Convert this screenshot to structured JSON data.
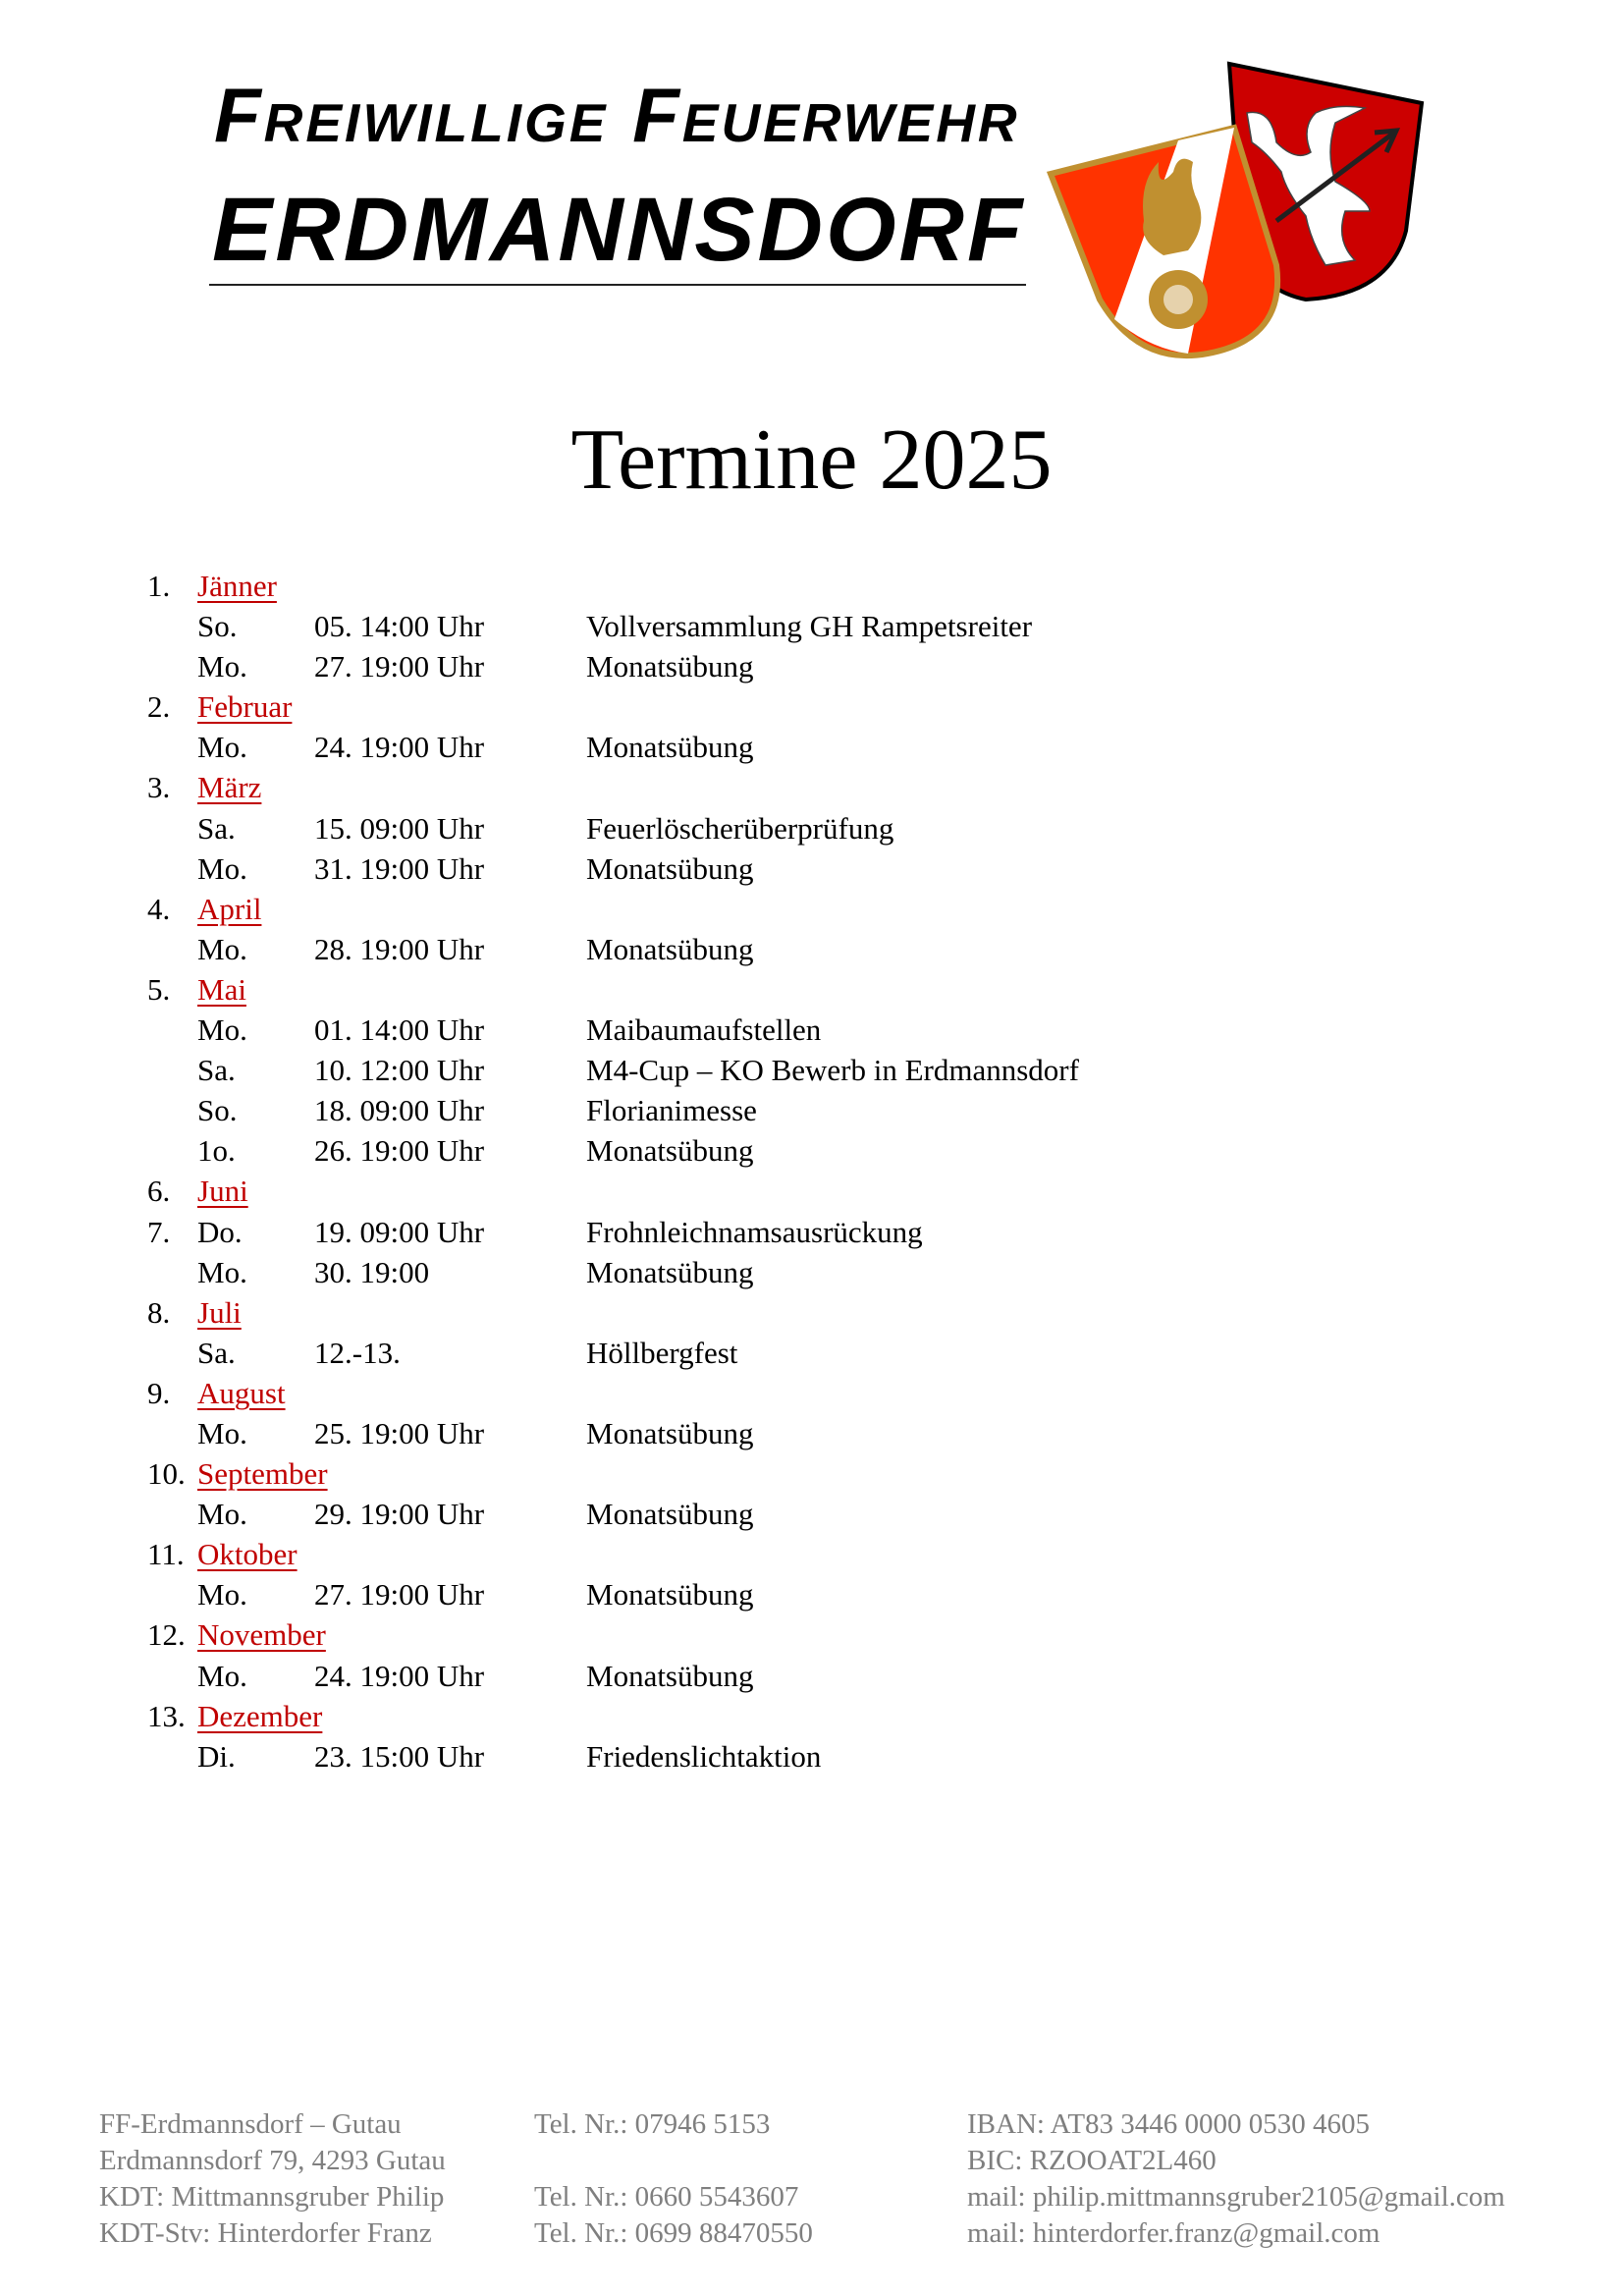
{
  "header": {
    "line1": "Freiwillige Feuerwehr",
    "line2": "ERDMANNSDORF",
    "logo_icons": [
      "fire-brigade-crest-icon",
      "municipal-coat-of-arms-deer-icon"
    ],
    "colors": {
      "crest_red": "#ff3300",
      "gold": "#c09030",
      "arms_red": "#cc0000"
    }
  },
  "title": "Termine 2025",
  "month_color": "#c00000",
  "rows": [
    {
      "num": "1.",
      "month": "Jänner"
    },
    {
      "day": "So.",
      "date": "05. 14:00 Uhr",
      "desc": "Vollversammlung GH Rampetsreiter"
    },
    {
      "day": "Mo.",
      "date": "27. 19:00 Uhr",
      "desc": "Monatsübung"
    },
    {
      "num": "2.",
      "month": "Februar"
    },
    {
      "day": "Mo.",
      "date": "24. 19:00 Uhr",
      "desc": "Monatsübung"
    },
    {
      "num": "3.",
      "month": "März"
    },
    {
      "day": "Sa.",
      "date": "15. 09:00 Uhr",
      "desc": "Feuerlöscherüberprüfung"
    },
    {
      "day": "Mo.",
      "date": "31. 19:00 Uhr",
      "desc": "Monatsübung"
    },
    {
      "num": "4.",
      "month": "April"
    },
    {
      "day": "Mo.",
      "date": "28. 19:00 Uhr",
      "desc": "Monatsübung"
    },
    {
      "num": "5.",
      "month": "Mai"
    },
    {
      "day": "Mo.",
      "date": "01. 14:00 Uhr",
      "desc": "Maibaumaufstellen"
    },
    {
      "day": "Sa.",
      "date": "10. 12:00 Uhr",
      "desc": "M4-Cup – KO Bewerb in Erdmannsdorf"
    },
    {
      "day": "So.",
      "date": "18. 09:00 Uhr",
      "desc": "Florianimesse"
    },
    {
      "day": "1o.",
      "date": "26. 19:00 Uhr",
      "desc": "Monatsübung"
    },
    {
      "num": "6.",
      "month": "Juni"
    },
    {
      "num": "7.",
      "day": "Do.",
      "date": "19. 09:00 Uhr",
      "desc": "Frohnleichnamsausrückung"
    },
    {
      "day": "Mo.",
      "date": "30. 19:00",
      "desc": "Monatsübung"
    },
    {
      "num": "8.",
      "month": "Juli"
    },
    {
      "day": "Sa.",
      "date": "12.-13.",
      "desc": "Höllbergfest"
    },
    {
      "num": "9.",
      "month": "August"
    },
    {
      "day": "Mo.",
      "date": "25. 19:00 Uhr",
      "desc": "Monatsübung"
    },
    {
      "num": "10.",
      "month": "September"
    },
    {
      "day": "Mo.",
      "date": "29. 19:00 Uhr",
      "desc": "Monatsübung"
    },
    {
      "num": "11.",
      "month": "Oktober"
    },
    {
      "day": "Mo.",
      "date": "27. 19:00 Uhr",
      "desc": "Monatsübung"
    },
    {
      "num": "12.",
      "month": "November"
    },
    {
      "day": "Mo.",
      "date": "24. 19:00 Uhr",
      "desc": "Monatsübung"
    },
    {
      "num": "13.",
      "month": "Dezember"
    },
    {
      "day": "Di.",
      "date": "23. 15:00 Uhr",
      "desc": "Friedenslichtaktion"
    }
  ],
  "footer": {
    "rows": [
      [
        "FF-Erdmannsdorf – Gutau",
        "Tel. Nr.: 07946 5153",
        "IBAN: AT83 3446 0000 0530 4605"
      ],
      [
        "Erdmannsdorf 79, 4293 Gutau",
        "",
        "BIC: RZOOAT2L460"
      ],
      [
        "KDT:  Mittmannsgruber Philip",
        "Tel. Nr.: 0660 5543607",
        "mail: philip.mittmannsgruber2105@gmail.com"
      ],
      [
        "KDT-Stv:  Hinterdorfer Franz",
        "Tel. Nr.: 0699 88470550",
        "mail: hinterdorfer.franz@gmail.com"
      ]
    ]
  }
}
